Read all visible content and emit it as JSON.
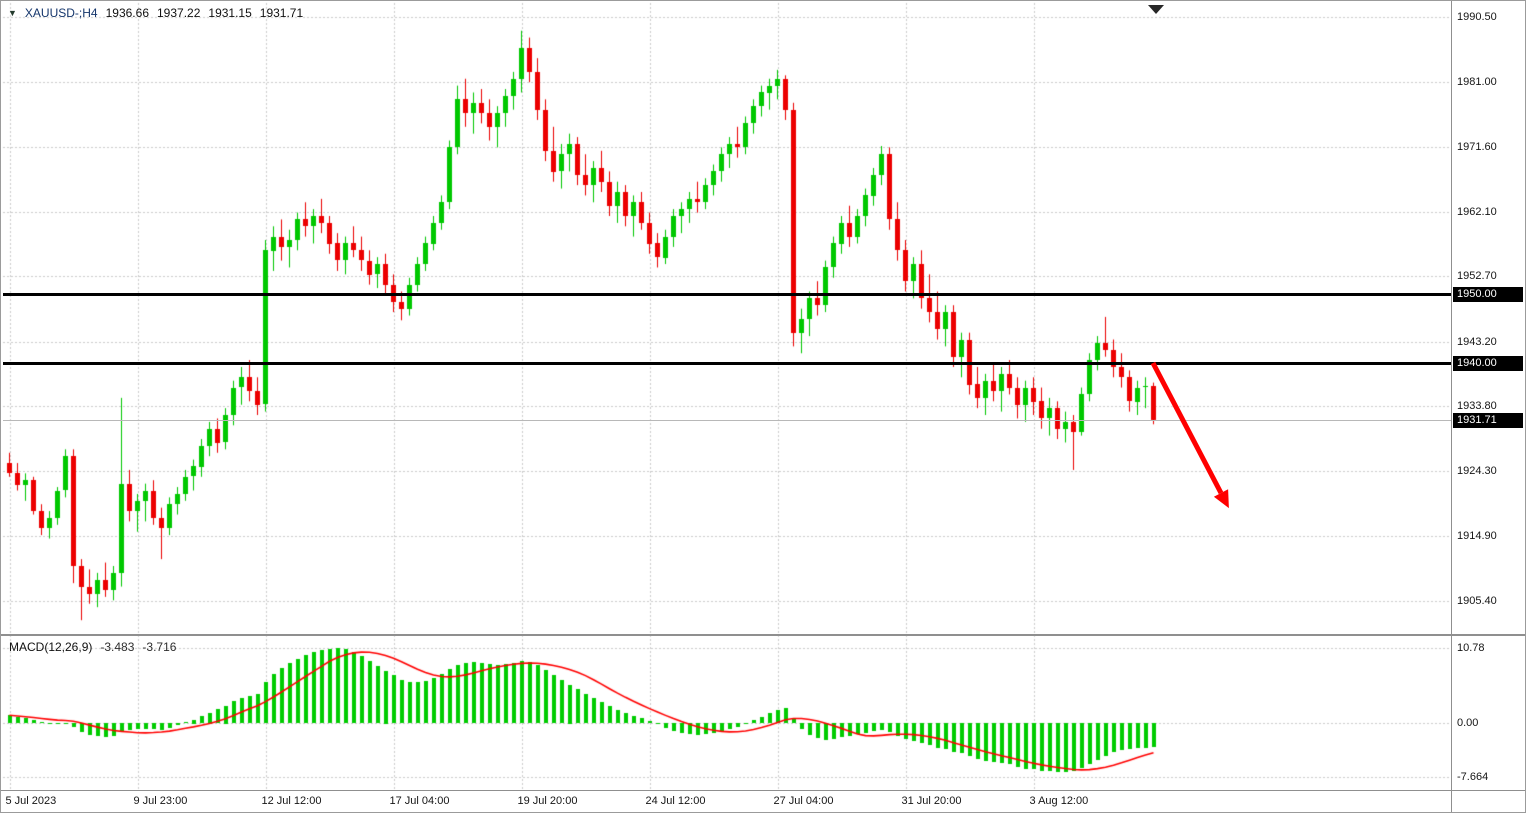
{
  "colors": {
    "up": "#00C800",
    "down": "#EC0000",
    "hist": "#00CC00",
    "signal": "#FF0000",
    "grid": "#CCCCCC",
    "hline": "#000000",
    "bid_line": "#B8B8B8",
    "arrow": "#FF0000",
    "tag_bg": "#000000",
    "tag_text": "#FFFFFF"
  },
  "icons": {
    "symbol_dropdown": "▼"
  },
  "chart_data": {
    "type": "candlestick_with_macd",
    "symbol": "XAUUSD-",
    "timeframe": "H4",
    "title_label": "XAUUSD-;H4",
    "ohlc": {
      "open": "1936.66",
      "high": "1937.22",
      "low": "1931.15",
      "close": "1931.71"
    },
    "y_axis_labels": [
      "1990.50",
      "1981.00",
      "1971.60",
      "1962.10",
      "1952.70",
      "1943.20",
      "1933.80",
      "1924.30",
      "1914.90",
      "1905.40"
    ],
    "ylim": [
      1905.4,
      1990.5
    ],
    "x_labels": [
      {
        "bar": 0,
        "label": "5 Jul 2023"
      },
      {
        "bar": 16,
        "label": "9 Jul 23:00"
      },
      {
        "bar": 32,
        "label": "12 Jul 12:00"
      },
      {
        "bar": 48,
        "label": "17 Jul 04:00"
      },
      {
        "bar": 64,
        "label": "19 Jul 20:00"
      },
      {
        "bar": 80,
        "label": "24 Jul 12:00"
      },
      {
        "bar": 96,
        "label": "27 Jul 04:00"
      },
      {
        "bar": 112,
        "label": "31 Jul 20:00"
      },
      {
        "bar": 128,
        "label": "3 Aug 12:00"
      }
    ],
    "hlines": [
      {
        "price": 1950.0,
        "label": "1950.00"
      },
      {
        "price": 1940.0,
        "label": "1940.00"
      }
    ],
    "bid": {
      "price": 1931.71,
      "label": "1931.71"
    },
    "annotations": [
      {
        "type": "arrow",
        "direction": "down-right",
        "color": "#FF0000",
        "from_price": 1940.3,
        "to_price": 1917.0
      }
    ],
    "candles": [
      [
        1925.5,
        1927.0,
        1923.5,
        1924.0
      ],
      [
        1924.0,
        1925.5,
        1921.5,
        1922.2
      ],
      [
        1922.2,
        1924.0,
        1920.0,
        1923.0
      ],
      [
        1923.0,
        1923.5,
        1918.0,
        1918.5
      ],
      [
        1918.5,
        1919.5,
        1915.0,
        1916.0
      ],
      [
        1916.0,
        1918.5,
        1914.5,
        1917.5
      ],
      [
        1917.5,
        1922.0,
        1916.5,
        1921.5
      ],
      [
        1921.5,
        1927.5,
        1920.5,
        1926.5
      ],
      [
        1926.5,
        1927.5,
        1908.0,
        1910.5
      ],
      [
        1910.5,
        1911.5,
        1902.6,
        1907.5
      ],
      [
        1907.5,
        1910.0,
        1905.0,
        1906.5
      ],
      [
        1906.5,
        1909.5,
        1904.5,
        1908.5
      ],
      [
        1908.5,
        1911.0,
        1906.0,
        1907.0
      ],
      [
        1907.0,
        1910.5,
        1905.5,
        1909.5
      ],
      [
        1909.5,
        1935.0,
        1907.5,
        1922.5
      ],
      [
        1922.5,
        1924.5,
        1917.0,
        1918.5
      ],
      [
        1918.5,
        1921.0,
        1915.5,
        1920.0
      ],
      [
        1920.0,
        1922.5,
        1917.0,
        1921.5
      ],
      [
        1921.5,
        1923.0,
        1916.5,
        1917.5
      ],
      [
        1917.5,
        1919.0,
        1911.5,
        1916.0
      ],
      [
        1916.0,
        1920.5,
        1915.0,
        1919.5
      ],
      [
        1919.5,
        1922.0,
        1918.0,
        1921.0
      ],
      [
        1921.0,
        1924.5,
        1920.0,
        1923.5
      ],
      [
        1923.5,
        1926.0,
        1921.5,
        1925.0
      ],
      [
        1925.0,
        1929.0,
        1923.5,
        1928.0
      ],
      [
        1928.0,
        1931.5,
        1926.5,
        1930.5
      ],
      [
        1930.5,
        1932.0,
        1927.0,
        1928.5
      ],
      [
        1928.5,
        1933.5,
        1927.5,
        1932.5
      ],
      [
        1932.5,
        1937.5,
        1931.0,
        1936.5
      ],
      [
        1936.5,
        1939.5,
        1934.0,
        1938.0
      ],
      [
        1938.0,
        1940.5,
        1934.5,
        1936.0
      ],
      [
        1936.0,
        1938.0,
        1932.5,
        1934.0
      ],
      [
        1934.0,
        1958.0,
        1933.0,
        1956.5
      ],
      [
        1956.5,
        1960.0,
        1953.5,
        1958.5
      ],
      [
        1958.5,
        1961.0,
        1955.0,
        1957.0
      ],
      [
        1957.0,
        1959.5,
        1954.0,
        1958.0
      ],
      [
        1958.0,
        1962.0,
        1956.5,
        1961.0
      ],
      [
        1961.0,
        1963.5,
        1958.5,
        1960.0
      ],
      [
        1960.0,
        1962.5,
        1957.5,
        1961.5
      ],
      [
        1961.5,
        1964.0,
        1959.0,
        1960.5
      ],
      [
        1960.5,
        1961.5,
        1956.0,
        1957.5
      ],
      [
        1957.5,
        1959.0,
        1953.5,
        1955.0
      ],
      [
        1955.0,
        1958.5,
        1953.0,
        1957.5
      ],
      [
        1957.5,
        1960.0,
        1955.5,
        1956.5
      ],
      [
        1956.5,
        1958.5,
        1953.5,
        1955.0
      ],
      [
        1955.0,
        1956.5,
        1951.5,
        1953.0
      ],
      [
        1953.0,
        1955.5,
        1951.0,
        1954.5
      ],
      [
        1954.5,
        1956.0,
        1950.0,
        1951.5
      ],
      [
        1951.5,
        1953.0,
        1947.5,
        1949.0
      ],
      [
        1949.0,
        1950.5,
        1946.3,
        1948.0
      ],
      [
        1948.0,
        1952.5,
        1947.0,
        1951.5
      ],
      [
        1951.5,
        1955.5,
        1950.5,
        1954.5
      ],
      [
        1954.5,
        1958.5,
        1953.5,
        1957.5
      ],
      [
        1957.5,
        1961.5,
        1956.5,
        1960.5
      ],
      [
        1960.5,
        1964.5,
        1959.5,
        1963.5
      ],
      [
        1963.5,
        1972.5,
        1962.5,
        1971.5
      ],
      [
        1971.5,
        1980.5,
        1970.5,
        1978.5
      ],
      [
        1978.5,
        1981.5,
        1974.5,
        1976.5
      ],
      [
        1976.5,
        1979.5,
        1973.5,
        1978.0
      ],
      [
        1978.0,
        1980.0,
        1975.0,
        1976.5
      ],
      [
        1976.5,
        1978.5,
        1972.5,
        1974.5
      ],
      [
        1974.5,
        1977.5,
        1971.5,
        1976.5
      ],
      [
        1976.5,
        1980.0,
        1974.5,
        1979.0
      ],
      [
        1979.0,
        1982.5,
        1977.0,
        1981.5
      ],
      [
        1981.5,
        1988.5,
        1979.5,
        1986.0
      ],
      [
        1986.0,
        1987.5,
        1981.0,
        1982.5
      ],
      [
        1982.5,
        1984.5,
        1975.5,
        1977.0
      ],
      [
        1977.0,
        1978.5,
        1969.5,
        1971.0
      ],
      [
        1971.0,
        1974.5,
        1966.5,
        1968.0
      ],
      [
        1968.0,
        1972.0,
        1965.5,
        1970.5
      ],
      [
        1970.5,
        1973.5,
        1968.0,
        1972.0
      ],
      [
        1972.0,
        1973.0,
        1966.0,
        1967.5
      ],
      [
        1967.5,
        1970.5,
        1964.5,
        1966.0
      ],
      [
        1966.0,
        1969.5,
        1963.5,
        1968.5
      ],
      [
        1968.5,
        1971.0,
        1965.0,
        1966.5
      ],
      [
        1966.5,
        1968.0,
        1961.5,
        1963.0
      ],
      [
        1963.0,
        1966.5,
        1960.5,
        1965.0
      ],
      [
        1965.0,
        1966.0,
        1960.0,
        1961.5
      ],
      [
        1961.5,
        1964.5,
        1958.5,
        1963.5
      ],
      [
        1963.5,
        1965.0,
        1959.5,
        1960.5
      ],
      [
        1960.5,
        1962.0,
        1956.0,
        1957.5
      ],
      [
        1957.5,
        1959.0,
        1954.0,
        1955.5
      ],
      [
        1955.5,
        1959.5,
        1954.5,
        1958.5
      ],
      [
        1958.5,
        1962.5,
        1957.0,
        1961.5
      ],
      [
        1961.5,
        1963.5,
        1959.0,
        1962.5
      ],
      [
        1962.5,
        1965.0,
        1960.5,
        1964.0
      ],
      [
        1964.0,
        1966.5,
        1962.0,
        1963.5
      ],
      [
        1963.5,
        1967.0,
        1962.5,
        1966.0
      ],
      [
        1966.0,
        1969.0,
        1964.5,
        1968.0
      ],
      [
        1968.0,
        1971.5,
        1966.5,
        1970.5
      ],
      [
        1970.5,
        1973.0,
        1968.5,
        1972.0
      ],
      [
        1972.0,
        1974.5,
        1970.0,
        1971.5
      ],
      [
        1971.5,
        1976.0,
        1970.5,
        1975.0
      ],
      [
        1975.0,
        1978.5,
        1973.5,
        1977.5
      ],
      [
        1977.5,
        1980.5,
        1976.0,
        1979.5
      ],
      [
        1979.5,
        1981.5,
        1977.0,
        1980.5
      ],
      [
        1980.5,
        1982.8,
        1978.5,
        1981.5
      ],
      [
        1981.5,
        1982.0,
        1975.5,
        1977.0
      ],
      [
        1977.0,
        1978.0,
        1942.5,
        1944.5
      ],
      [
        1944.5,
        1948.0,
        1941.5,
        1946.5
      ],
      [
        1946.5,
        1950.5,
        1944.0,
        1949.5
      ],
      [
        1949.5,
        1952.0,
        1947.0,
        1948.5
      ],
      [
        1948.5,
        1955.0,
        1947.5,
        1954.0
      ],
      [
        1954.0,
        1958.5,
        1952.5,
        1957.5
      ],
      [
        1957.5,
        1961.5,
        1956.0,
        1960.5
      ],
      [
        1960.5,
        1963.0,
        1957.0,
        1958.5
      ],
      [
        1958.5,
        1962.5,
        1957.5,
        1961.5
      ],
      [
        1961.5,
        1965.5,
        1960.0,
        1964.5
      ],
      [
        1964.5,
        1968.5,
        1963.0,
        1967.5
      ],
      [
        1967.5,
        1971.7,
        1966.0,
        1970.5
      ],
      [
        1970.5,
        1971.5,
        1959.5,
        1961.0
      ],
      [
        1961.0,
        1963.5,
        1955.0,
        1956.5
      ],
      [
        1956.5,
        1958.0,
        1950.5,
        1952.0
      ],
      [
        1952.0,
        1955.5,
        1949.5,
        1954.5
      ],
      [
        1954.5,
        1956.5,
        1948.0,
        1949.5
      ],
      [
        1949.5,
        1953.0,
        1946.0,
        1947.5
      ],
      [
        1947.5,
        1950.5,
        1943.5,
        1945.0
      ],
      [
        1945.0,
        1948.5,
        1942.5,
        1947.5
      ],
      [
        1947.5,
        1948.5,
        1939.5,
        1941.0
      ],
      [
        1941.0,
        1944.5,
        1938.0,
        1943.5
      ],
      [
        1943.5,
        1944.5,
        1935.5,
        1937.0
      ],
      [
        1937.0,
        1939.5,
        1933.5,
        1935.0
      ],
      [
        1935.0,
        1938.5,
        1932.5,
        1937.5
      ],
      [
        1937.5,
        1940.0,
        1934.5,
        1936.0
      ],
      [
        1936.0,
        1939.5,
        1933.0,
        1938.5
      ],
      [
        1938.5,
        1940.5,
        1935.5,
        1936.5
      ],
      [
        1936.5,
        1938.0,
        1932.0,
        1934.0
      ],
      [
        1934.0,
        1937.5,
        1931.5,
        1936.5
      ],
      [
        1936.5,
        1938.0,
        1932.5,
        1934.5
      ],
      [
        1934.5,
        1936.5,
        1930.5,
        1932.0
      ],
      [
        1932.0,
        1935.0,
        1929.5,
        1933.5
      ],
      [
        1933.5,
        1934.5,
        1929.0,
        1930.5
      ],
      [
        1930.5,
        1933.0,
        1928.5,
        1931.5
      ],
      [
        1931.5,
        1932.5,
        1924.5,
        1930.0
      ],
      [
        1930.0,
        1936.5,
        1929.5,
        1935.5
      ],
      [
        1935.5,
        1941.5,
        1934.5,
        1940.5
      ],
      [
        1940.5,
        1944.0,
        1939.0,
        1943.0
      ],
      [
        1943.0,
        1946.8,
        1941.0,
        1942.0
      ],
      [
        1942.0,
        1943.5,
        1938.0,
        1939.5
      ],
      [
        1939.5,
        1941.5,
        1936.5,
        1938.0
      ],
      [
        1938.0,
        1939.0,
        1933.0,
        1934.5
      ],
      [
        1934.5,
        1937.5,
        1932.5,
        1936.5
      ],
      [
        1936.5,
        1938.0,
        1933.5,
        1936.7
      ],
      [
        1936.66,
        1937.22,
        1931.15,
        1931.71
      ]
    ],
    "macd": {
      "title": "MACD(12,26,9)",
      "value": "-3.483",
      "signal_value": "-3.716",
      "axis_labels": [
        {
          "v": 10.78,
          "label": "10.78"
        },
        {
          "v": 0,
          "label": "0.00"
        },
        {
          "v": -7.664,
          "label": "-7.664"
        }
      ],
      "hist": [
        1.1,
        0.9,
        0.7,
        0.4,
        0.1,
        -0.1,
        -0.2,
        0.0,
        -0.6,
        -1.3,
        -1.7,
        -1.9,
        -2.0,
        -1.9,
        -1.2,
        -1.0,
        -0.9,
        -0.8,
        -0.9,
        -1.0,
        -0.7,
        -0.3,
        0.1,
        0.5,
        1.0,
        1.5,
        2.0,
        2.5,
        3.1,
        3.6,
        3.9,
        4.1,
        5.8,
        7.0,
        7.9,
        8.6,
        9.2,
        9.7,
        10.1,
        10.4,
        10.6,
        10.78,
        10.6,
        10.2,
        9.6,
        8.9,
        8.2,
        7.5,
        6.8,
        6.2,
        5.9,
        5.8,
        6.0,
        6.4,
        7.0,
        7.7,
        8.3,
        8.6,
        8.7,
        8.6,
        8.4,
        8.3,
        8.4,
        8.6,
        8.8,
        8.7,
        8.3,
        7.6,
        6.8,
        6.1,
        5.5,
        4.9,
        4.2,
        3.6,
        3.0,
        2.4,
        1.9,
        1.4,
        1.0,
        0.7,
        0.3,
        -0.2,
        -0.7,
        -1.1,
        -1.4,
        -1.6,
        -1.7,
        -1.6,
        -1.4,
        -1.1,
        -0.8,
        -0.5,
        -0.1,
        0.4,
        0.9,
        1.4,
        1.8,
        2.1,
        0.6,
        -0.8,
        -1.7,
        -2.2,
        -2.4,
        -2.3,
        -2.0,
        -1.8,
        -1.6,
        -1.4,
        -1.2,
        -1.0,
        -1.3,
        -1.8,
        -2.3,
        -2.6,
        -2.9,
        -3.2,
        -3.5,
        -3.7,
        -4.1,
        -4.3,
        -4.7,
        -5.1,
        -5.4,
        -5.6,
        -5.7,
        -5.8,
        -6.3,
        -6.5,
        -6.6,
        -6.8,
        -6.9,
        -7.0,
        -7.0,
        -6.8,
        -6.4,
        -5.9,
        -5.3,
        -4.7,
        -4.2,
        -3.9,
        -3.7,
        -3.6,
        -3.55,
        -3.483
      ]
    }
  }
}
